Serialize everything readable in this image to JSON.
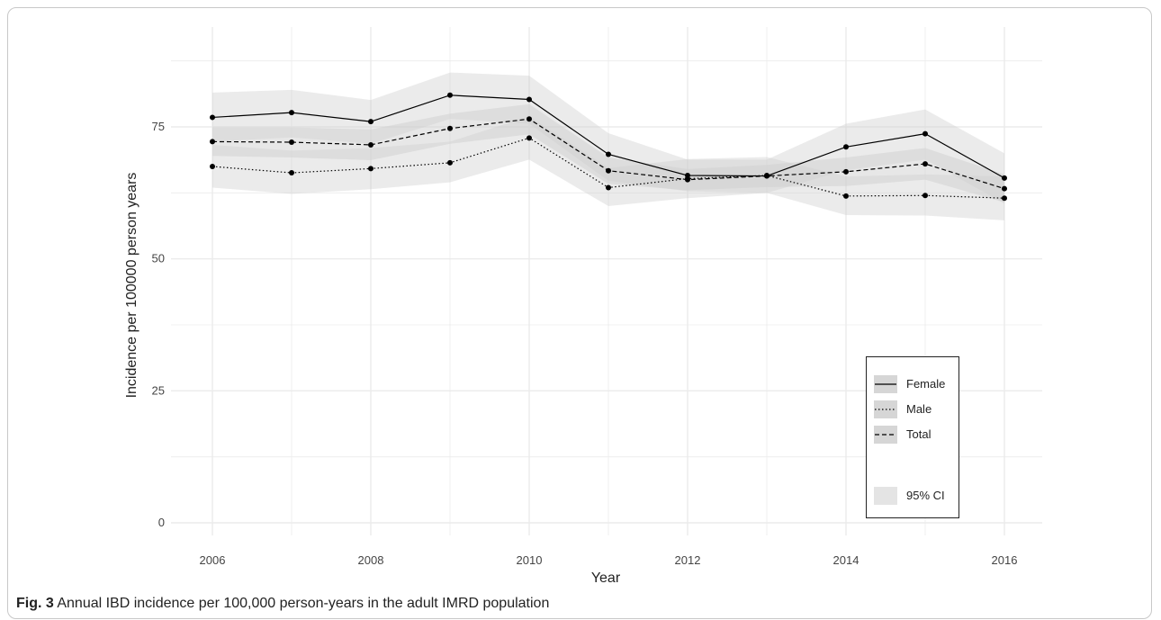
{
  "figure": {
    "caption_label": "Fig. 3",
    "caption_text": "Annual IBD incidence per 100,000 person-years in the adult IMRD population"
  },
  "chart_data": {
    "type": "line",
    "xlabel": "Year",
    "ylabel": "Incidence per 100000 person years",
    "x_ticks": [
      2006,
      2008,
      2010,
      2012,
      2014,
      2016
    ],
    "y_ticks": [
      0,
      25,
      50,
      75
    ],
    "xlim": [
      2006,
      2016
    ],
    "ylim": [
      0,
      90
    ],
    "grid": true,
    "legend_position": "bottom-right",
    "x": [
      2006,
      2007,
      2008,
      2009,
      2010,
      2011,
      2012,
      2013,
      2014,
      2015,
      2016
    ],
    "series": [
      {
        "name": "Female",
        "line_style": "solid",
        "values": [
          76.8,
          77.7,
          76.0,
          81.0,
          80.2,
          69.8,
          65.8,
          65.7,
          71.2,
          73.7,
          65.3
        ],
        "ci_lower": [
          72.2,
          73.0,
          71.8,
          76.5,
          75.6,
          64.8,
          62.8,
          62.5,
          66.8,
          68.8,
          60.5
        ],
        "ci_upper": [
          81.5,
          82.0,
          80.1,
          85.3,
          84.7,
          73.8,
          68.8,
          68.8,
          75.6,
          78.3,
          70.0
        ]
      },
      {
        "name": "Male",
        "line_style": "dotted",
        "values": [
          67.5,
          66.3,
          67.1,
          68.2,
          72.9,
          63.5,
          65.2,
          65.8,
          61.9,
          62.0,
          61.5
        ],
        "ci_lower": [
          63.5,
          62.3,
          63.2,
          64.5,
          68.8,
          60.0,
          61.5,
          62.5,
          58.3,
          58.2,
          57.3
        ],
        "ci_upper": [
          71.6,
          70.5,
          71.0,
          72.2,
          77.0,
          67.2,
          68.9,
          69.3,
          65.6,
          66.0,
          65.6
        ]
      },
      {
        "name": "Total",
        "line_style": "dashed",
        "values": [
          72.2,
          72.1,
          71.6,
          74.7,
          76.5,
          66.7,
          65.0,
          65.7,
          66.5,
          68.0,
          63.3
        ],
        "ci_lower": [
          69.5,
          69.2,
          68.7,
          71.8,
          73.6,
          64.2,
          63.0,
          63.6,
          63.8,
          65.0,
          60.7
        ],
        "ci_upper": [
          74.9,
          74.9,
          74.5,
          77.5,
          79.3,
          69.2,
          67.0,
          67.8,
          69.2,
          71.0,
          66.0
        ]
      }
    ],
    "legend": {
      "entries": [
        "Female",
        "Male",
        "Total"
      ],
      "ci_label": "95% CI"
    },
    "colors": {
      "lines": "#000000",
      "ci_band": "#d0d0d0",
      "grid": "#ebebeb"
    }
  }
}
